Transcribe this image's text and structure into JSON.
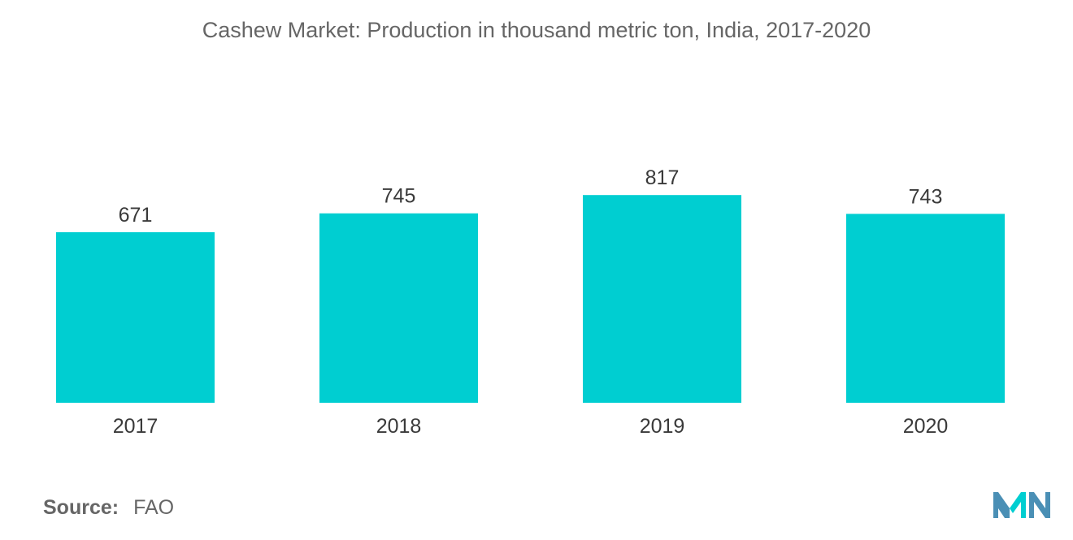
{
  "chart_data": {
    "type": "bar",
    "title": "Cashew Market: Production in thousand metric ton, India, 2017-2020",
    "categories": [
      "2017",
      "2018",
      "2019",
      "2020"
    ],
    "values": [
      671,
      745,
      817,
      743
    ],
    "ylim": [
      0,
      900
    ],
    "grid": false,
    "legend": "none",
    "bar_color": "#00CED1"
  },
  "footer": {
    "source_label": "Source:",
    "source_value": "FAO"
  },
  "logo": {
    "icon": "mordor-intelligence-logo",
    "colors": [
      "#4A8FB5",
      "#00CED1"
    ]
  }
}
